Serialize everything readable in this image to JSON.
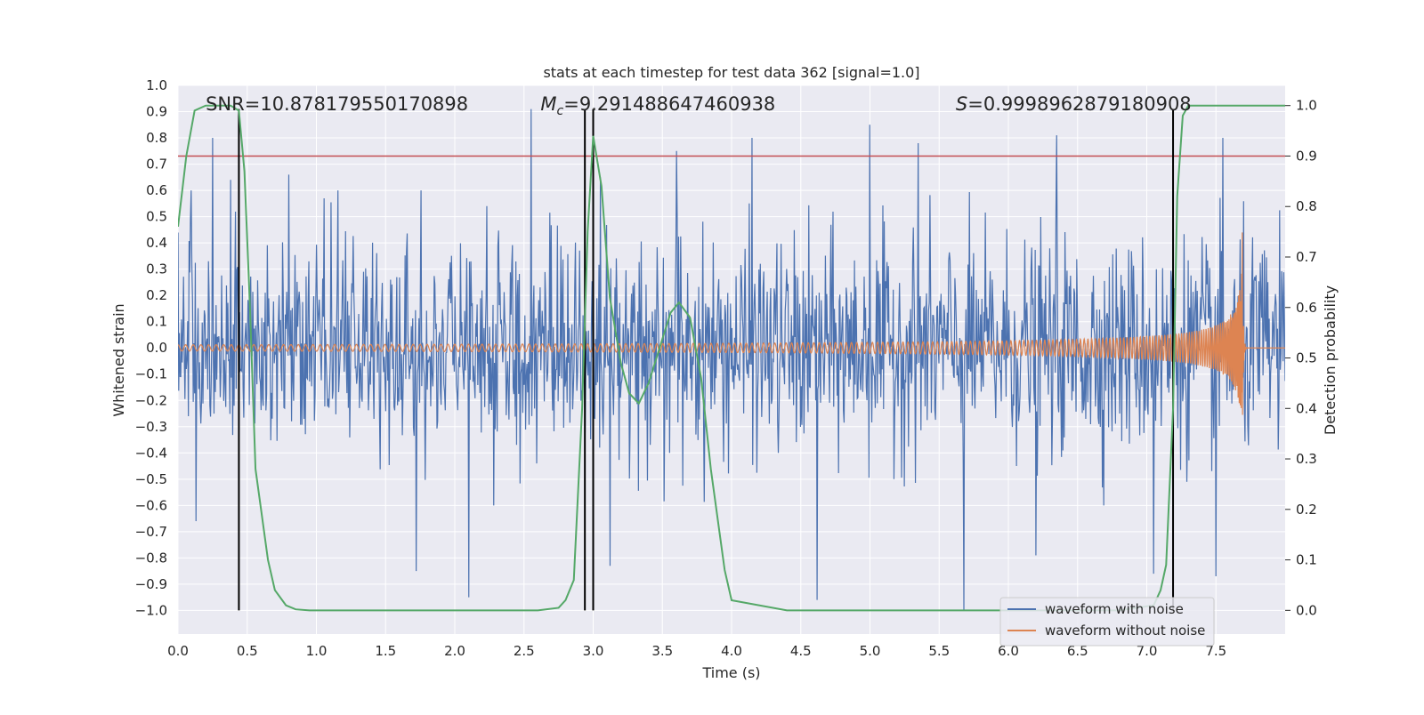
{
  "chart_data": {
    "type": "line",
    "title": "stats at each timestep for test data 362 [signal=1.0]",
    "xlabel": "Time (s)",
    "ylabel_left": "Whitened strain",
    "ylabel_right": "Detection probability",
    "xlim": [
      0.0,
      8.0
    ],
    "ylim_left": [
      -1.09,
      1.0
    ],
    "ylim_right": [
      -0.047,
      1.04
    ],
    "x_ticks": [
      0.0,
      0.5,
      1.0,
      1.5,
      2.0,
      2.5,
      3.0,
      3.5,
      4.0,
      4.5,
      5.0,
      5.5,
      6.0,
      6.5,
      7.0,
      7.5
    ],
    "x_tick_labels": [
      "0.0",
      "0.5",
      "1.0",
      "1.5",
      "2.0",
      "2.5",
      "3.0",
      "3.5",
      "4.0",
      "4.5",
      "5.0",
      "5.5",
      "6.0",
      "6.5",
      "7.0",
      "7.5"
    ],
    "y_left_ticks": [
      -1.0,
      -0.9,
      -0.8,
      -0.7,
      -0.6,
      -0.5,
      -0.4,
      -0.3,
      -0.2,
      -0.1,
      0.0,
      0.1,
      0.2,
      0.3,
      0.4,
      0.5,
      0.6,
      0.7,
      0.8,
      0.9,
      1.0
    ],
    "y_left_tick_labels": [
      "−1.0",
      "−0.9",
      "−0.8",
      "−0.7",
      "−0.6",
      "−0.5",
      "−0.4",
      "−0.3",
      "−0.2",
      "−0.1",
      "0.0",
      "0.1",
      "0.2",
      "0.3",
      "0.4",
      "0.5",
      "0.6",
      "0.7",
      "0.8",
      "0.9",
      "1.0"
    ],
    "y_right_ticks": [
      0.0,
      0.1,
      0.2,
      0.3,
      0.4,
      0.5,
      0.6,
      0.7,
      0.8,
      0.9,
      1.0
    ],
    "y_right_tick_labels": [
      "0.0",
      "0.1",
      "0.2",
      "0.3",
      "0.4",
      "0.5",
      "0.6",
      "0.7",
      "0.8",
      "0.9",
      "1.0"
    ],
    "annotations": [
      {
        "id": "snr",
        "prefix": "SNR=",
        "value": "10.878179550170898",
        "x_data": 0.2
      },
      {
        "id": "mc",
        "prefix": "M",
        "subscript": "c",
        "eq": "=",
        "value": "9.291488647460938",
        "x_data": 2.62
      },
      {
        "id": "s",
        "prefix": "S",
        "eq": "=",
        "value": "0.9998962879180908",
        "x_data": 5.62
      }
    ],
    "threshold_line": {
      "axis": "right",
      "value": 0.9,
      "color": "#c44e52"
    },
    "vertical_markers": [
      {
        "x": 0.44,
        "ymin": -1.0,
        "ymax": 0.91
      },
      {
        "x": 2.94,
        "ymin": -1.0,
        "ymax": 0.91
      },
      {
        "x": 3.0,
        "ymin": -1.0,
        "ymax": 0.91
      },
      {
        "x": 7.19,
        "ymin": -1.0,
        "ymax": 0.91
      }
    ],
    "series": [
      {
        "name": "waveform with noise",
        "axis": "left",
        "color": "#4c72b0",
        "kind": "noise",
        "t_range": [
          0.0,
          8.0
        ],
        "samples": 1600,
        "envelope_pos": 0.5,
        "envelope_neg": -0.5,
        "peaks_pos": [
          [
            0.25,
            0.8
          ],
          [
            0.38,
            0.64
          ],
          [
            0.8,
            0.66
          ],
          [
            2.1,
            0.81
          ],
          [
            2.55,
            0.91
          ],
          [
            3.05,
            0.65
          ],
          [
            3.6,
            0.75
          ],
          [
            4.15,
            0.8
          ],
          [
            5.0,
            0.85
          ],
          [
            5.35,
            0.78
          ],
          [
            6.35,
            0.81
          ],
          [
            7.05,
            0.82
          ],
          [
            7.55,
            0.8
          ]
        ],
        "peaks_neg": [
          [
            0.13,
            -0.66
          ],
          [
            1.72,
            -0.85
          ],
          [
            2.1,
            -0.95
          ],
          [
            3.12,
            -0.83
          ],
          [
            4.62,
            -0.96
          ],
          [
            5.68,
            -1.0
          ],
          [
            6.2,
            -0.79
          ],
          [
            7.05,
            -0.86
          ],
          [
            7.5,
            -0.87
          ]
        ]
      },
      {
        "name": "waveform without noise",
        "axis": "left",
        "color": "#dd8452",
        "kind": "chirp",
        "t_merger": 7.69,
        "amplitude_start": 0.012,
        "amplitude_peak": 0.44,
        "t_end": 8.0
      },
      {
        "name": "detection probability",
        "axis": "right",
        "color": "#55a868",
        "x": [
          0.0,
          0.06,
          0.12,
          0.2,
          0.3,
          0.38,
          0.44,
          0.48,
          0.52,
          0.56,
          0.6,
          0.65,
          0.7,
          0.78,
          0.85,
          0.95,
          1.2,
          1.6,
          2.0,
          2.4,
          2.6,
          2.75,
          2.8,
          2.86,
          2.92,
          2.96,
          3.0,
          3.06,
          3.12,
          3.2,
          3.26,
          3.33,
          3.4,
          3.48,
          3.56,
          3.62,
          3.7,
          3.78,
          3.85,
          3.95,
          4.0,
          4.4,
          5.0,
          6.0,
          6.8,
          7.05,
          7.1,
          7.14,
          7.19,
          7.22,
          7.26,
          7.3,
          7.35,
          7.6,
          8.0
        ],
        "values": [
          0.76,
          0.9,
          0.99,
          1.0,
          1.0,
          1.0,
          0.99,
          0.87,
          0.6,
          0.28,
          0.2,
          0.1,
          0.04,
          0.01,
          0.002,
          0.0,
          0.0,
          0.0,
          0.0,
          0.0,
          0.0,
          0.005,
          0.02,
          0.06,
          0.4,
          0.75,
          0.94,
          0.84,
          0.62,
          0.49,
          0.43,
          0.41,
          0.45,
          0.52,
          0.59,
          0.61,
          0.58,
          0.46,
          0.28,
          0.08,
          0.02,
          0.0,
          0.0,
          0.0,
          0.0,
          0.01,
          0.04,
          0.09,
          0.4,
          0.82,
          0.98,
          1.0,
          1.0,
          1.0,
          1.0
        ]
      }
    ],
    "legend": {
      "placement": "lower-right",
      "entries": [
        "waveform with noise",
        "waveform without noise"
      ]
    }
  }
}
